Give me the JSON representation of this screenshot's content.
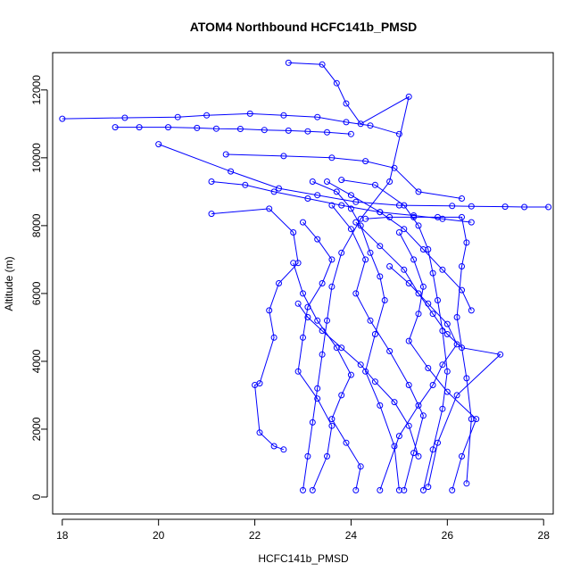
{
  "chart_data": {
    "type": "line",
    "title": "ATOM4 Northbound HCFC141b_PMSD",
    "xlabel": "HCFC141b_PMSD",
    "ylabel": "Altitude (m)",
    "xlim": [
      17.8,
      28.2
    ],
    "ylim": [
      -500,
      13100
    ],
    "xticks": [
      18,
      20,
      22,
      24,
      26,
      28
    ],
    "yticks": [
      0,
      2000,
      4000,
      6000,
      8000,
      10000,
      12000
    ],
    "grid": false,
    "series_color": "#0000ff",
    "series": [
      {
        "x": [
          18.0,
          19.3,
          20.4,
          21.0,
          21.9,
          22.6,
          23.3,
          23.9,
          24.4,
          25.0
        ],
        "y": [
          11150,
          11180,
          11200,
          11250,
          11300,
          11250,
          11200,
          11050,
          10950,
          10700
        ]
      },
      {
        "x": [
          22.7,
          23.4,
          23.7,
          23.9,
          24.2,
          25.2,
          24.8,
          24.2,
          23.8,
          23.6,
          23.5,
          23.4,
          23.3,
          23.2,
          23.1,
          23.0
        ],
        "y": [
          12800,
          12750,
          12200,
          11600,
          11000,
          11800,
          9300,
          8200,
          7200,
          6200,
          5200,
          4200,
          3200,
          2200,
          1200,
          200
        ]
      },
      {
        "x": [
          19.1,
          19.6,
          20.2,
          20.8,
          21.2,
          21.7,
          22.2,
          22.7,
          23.1,
          23.5,
          24.0
        ],
        "y": [
          10900,
          10900,
          10900,
          10880,
          10860,
          10850,
          10820,
          10800,
          10780,
          10750,
          10700
        ]
      },
      {
        "x": [
          20.0,
          21.5,
          22.5,
          23.3,
          24.1,
          25.0,
          26.1,
          26.5,
          27.2,
          27.6,
          28.1
        ],
        "y": [
          10400,
          9600,
          9100,
          8900,
          8700,
          8600,
          8580,
          8570,
          8560,
          8550,
          8550
        ]
      },
      {
        "x": [
          21.4,
          22.6,
          23.6,
          24.3,
          24.9,
          25.4,
          26.3
        ],
        "y": [
          10100,
          10050,
          10000,
          9900,
          9700,
          9000,
          8800
        ]
      },
      {
        "x": [
          21.1,
          21.8,
          22.4,
          23.1,
          23.8,
          24.6,
          25.3,
          25.9,
          26.5
        ],
        "y": [
          9300,
          9200,
          9000,
          8800,
          8600,
          8400,
          8300,
          8200,
          8100
        ]
      },
      {
        "x": [
          21.1,
          22.3,
          22.8,
          22.9,
          22.5,
          22.3,
          22.4,
          22.1,
          22.0,
          22.1,
          22.4,
          22.6
        ],
        "y": [
          8350,
          8500,
          7800,
          6900,
          6300,
          5500,
          4700,
          3350,
          3300,
          1900,
          1500,
          1400
        ]
      },
      {
        "x": [
          23.2,
          23.7,
          24.0,
          24.2,
          24.4,
          24.6,
          24.7,
          24.5,
          24.3,
          24.6,
          24.9,
          25.0
        ],
        "y": [
          9300,
          9000,
          8500,
          8000,
          7200,
          6500,
          5800,
          4800,
          3700,
          2700,
          1500,
          200
        ]
      },
      {
        "x": [
          23.8,
          24.5,
          25.1,
          25.4,
          25.6,
          25.7,
          25.8,
          25.9,
          26.0,
          25.9,
          25.7,
          25.5
        ],
        "y": [
          9350,
          9200,
          8600,
          8000,
          7300,
          6600,
          5800,
          4900,
          3700,
          2600,
          1400,
          200
        ]
      },
      {
        "x": [
          24.3,
          24.8,
          25.3,
          25.8,
          26.3,
          26.4,
          26.3,
          26.2,
          26.4,
          26.5,
          26.4
        ],
        "y": [
          8200,
          8250,
          8250,
          8250,
          8250,
          7500,
          6800,
          5300,
          3500,
          2300,
          400
        ]
      },
      {
        "x": [
          23.0,
          23.3,
          23.6,
          23.4,
          23.1,
          23.0,
          22.9,
          23.3,
          23.6,
          23.5,
          23.2
        ],
        "y": [
          8100,
          7600,
          7000,
          6300,
          5600,
          4700,
          3700,
          2900,
          2100,
          1200,
          200
        ]
      },
      {
        "x": [
          23.6,
          24.0,
          24.3,
          24.1,
          24.4,
          24.8,
          25.2,
          25.5,
          25.3,
          25.1
        ],
        "y": [
          8600,
          7900,
          7000,
          6000,
          5200,
          4300,
          3300,
          2400,
          1300,
          200
        ]
      },
      {
        "x": [
          24.1,
          24.6,
          25.1,
          25.4,
          25.7,
          26.0,
          26.3,
          27.1,
          26.2,
          25.8,
          25.6
        ],
        "y": [
          8100,
          7400,
          6700,
          6000,
          5400,
          4800,
          4400,
          4200,
          3000,
          1600,
          300
        ]
      },
      {
        "x": [
          22.8,
          23.0,
          23.3,
          23.7,
          24.0,
          23.8,
          23.6,
          23.9,
          24.2,
          24.1
        ],
        "y": [
          6900,
          6000,
          5200,
          4400,
          3600,
          3000,
          2300,
          1600,
          900,
          200
        ]
      },
      {
        "x": [
          25.0,
          25.3,
          25.5,
          25.4,
          25.2,
          25.6,
          26.0,
          26.6,
          26.3,
          26.1
        ],
        "y": [
          7800,
          7000,
          6200,
          5400,
          4600,
          3800,
          3100,
          2300,
          1200,
          200
        ]
      },
      {
        "x": [
          24.8,
          25.2,
          25.6,
          26.0,
          26.2,
          25.9,
          25.7,
          25.4,
          25.0,
          24.6
        ],
        "y": [
          6800,
          6300,
          5700,
          5100,
          4500,
          3900,
          3300,
          2700,
          1800,
          200
        ]
      },
      {
        "x": [
          22.9,
          23.1,
          23.4,
          23.8,
          24.2,
          24.5,
          24.9,
          25.2,
          25.4
        ],
        "y": [
          5700,
          5300,
          4900,
          4400,
          3900,
          3400,
          2800,
          2100,
          1200
        ]
      },
      {
        "x": [
          23.5,
          24.0,
          24.6,
          25.1,
          25.5,
          25.9,
          26.3,
          26.5
        ],
        "y": [
          9300,
          8900,
          8400,
          7900,
          7300,
          6700,
          6100,
          5500
        ]
      }
    ]
  }
}
